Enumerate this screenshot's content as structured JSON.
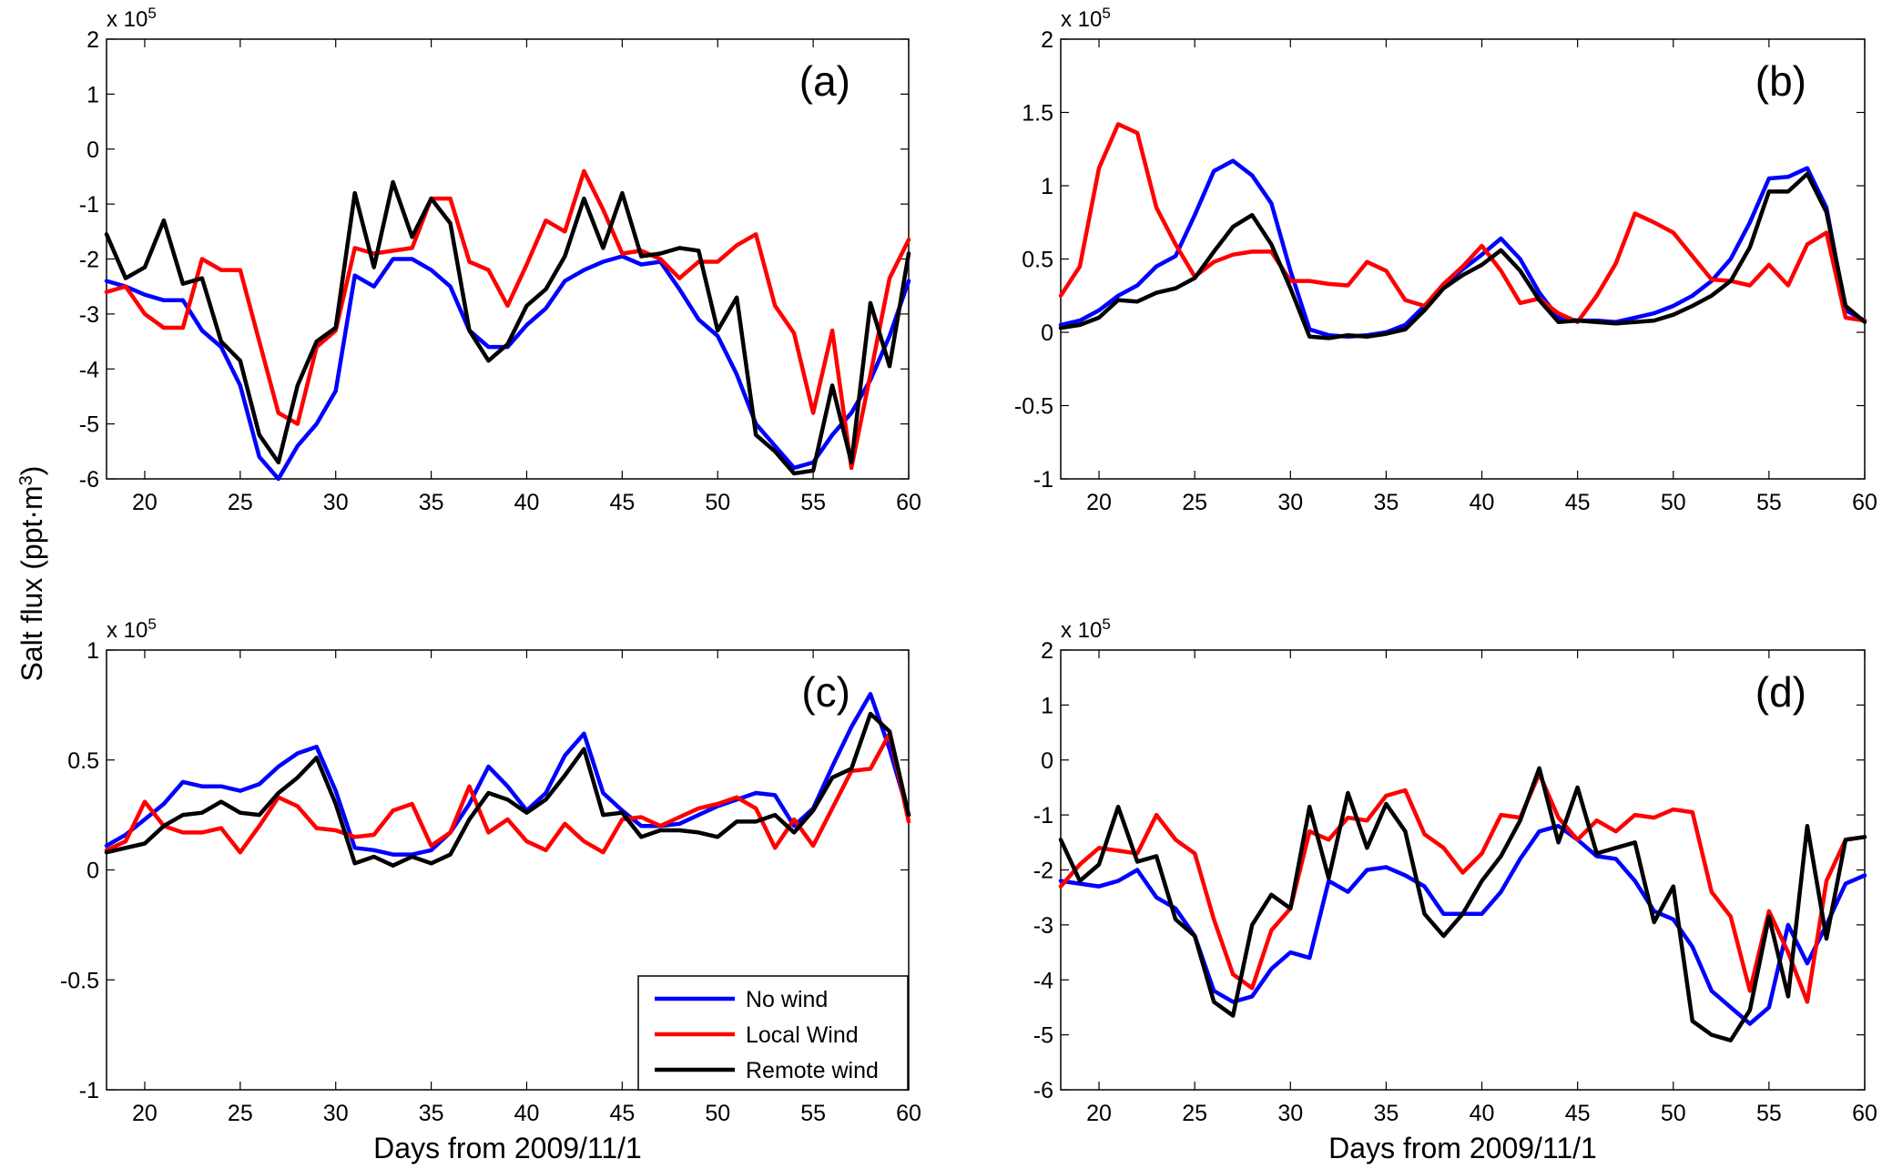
{
  "figure": {
    "ylabel_prefix": "Salt flux (ppt·m",
    "ylabel_sup": "3",
    "ylabel_suffix": ")",
    "multiplier_base": "x 10",
    "multiplier_exp": "5"
  },
  "legend": {
    "entries": [
      {
        "label": "No wind",
        "color": "#0000ff"
      },
      {
        "label": "Local Wind",
        "color": "#ff0000"
      },
      {
        "label": "Remote wind",
        "color": "#000000"
      }
    ]
  },
  "chart_data": [
    {
      "type": "line",
      "panel_label": "(a)",
      "xlabel": "",
      "xlim": [
        18,
        60
      ],
      "ylim": [
        -6,
        2
      ],
      "xticks": [
        20,
        25,
        30,
        35,
        40,
        45,
        50,
        55,
        60
      ],
      "yticks": [
        -6,
        -5,
        -4,
        -3,
        -2,
        -1,
        0,
        1,
        2
      ],
      "ytick_labels": [
        "-6",
        "-5",
        "-4",
        "-3",
        "-2",
        "-1",
        "0",
        "1",
        "2"
      ],
      "x": [
        18,
        19,
        20,
        21,
        22,
        23,
        24,
        25,
        26,
        27,
        28,
        29,
        30,
        31,
        32,
        33,
        34,
        35,
        36,
        37,
        38,
        39,
        40,
        41,
        42,
        43,
        44,
        45,
        46,
        47,
        48,
        49,
        50,
        51,
        52,
        53,
        54,
        55,
        56,
        57,
        58,
        59,
        60
      ],
      "series": [
        {
          "name": "No wind",
          "color": "#0000ff",
          "values": [
            -2.4,
            -2.5,
            -2.65,
            -2.75,
            -2.75,
            -3.3,
            -3.6,
            -4.3,
            -5.6,
            -6.0,
            -5.4,
            -5.0,
            -4.4,
            -2.3,
            -2.5,
            -2.0,
            -2.0,
            -2.2,
            -2.5,
            -3.3,
            -3.6,
            -3.6,
            -3.2,
            -2.9,
            -2.4,
            -2.2,
            -2.05,
            -1.95,
            -2.1,
            -2.05,
            -2.55,
            -3.1,
            -3.4,
            -4.1,
            -5.0,
            -5.4,
            -5.8,
            -5.7,
            -5.2,
            -4.8,
            -4.2,
            -3.4,
            -2.4
          ]
        },
        {
          "name": "Local Wind",
          "color": "#ff0000",
          "values": [
            -2.6,
            -2.5,
            -3.0,
            -3.25,
            -3.25,
            -2.0,
            -2.2,
            -2.2,
            -3.5,
            -4.8,
            -5.0,
            -3.6,
            -3.3,
            -1.8,
            -1.9,
            -1.85,
            -1.8,
            -0.9,
            -0.9,
            -2.05,
            -2.2,
            -2.85,
            -2.1,
            -1.3,
            -1.5,
            -0.4,
            -1.1,
            -1.9,
            -1.85,
            -2.0,
            -2.35,
            -2.05,
            -2.05,
            -1.75,
            -1.55,
            -2.85,
            -3.35,
            -4.8,
            -3.3,
            -5.8,
            -4.1,
            -2.35,
            -1.65
          ]
        },
        {
          "name": "Remote wind",
          "color": "#000000",
          "values": [
            -1.55,
            -2.35,
            -2.15,
            -1.3,
            -2.45,
            -2.35,
            -3.5,
            -3.85,
            -5.2,
            -5.7,
            -4.3,
            -3.5,
            -3.25,
            -0.8,
            -2.15,
            -0.6,
            -1.6,
            -0.9,
            -1.35,
            -3.3,
            -3.85,
            -3.55,
            -2.85,
            -2.55,
            -1.95,
            -0.9,
            -1.8,
            -0.8,
            -1.95,
            -1.9,
            -1.8,
            -1.85,
            -3.3,
            -2.7,
            -5.2,
            -5.5,
            -5.9,
            -5.85,
            -4.3,
            -5.7,
            -2.8,
            -3.95,
            -1.9
          ]
        }
      ]
    },
    {
      "type": "line",
      "panel_label": "(b)",
      "xlabel": "",
      "xlim": [
        18,
        60
      ],
      "ylim": [
        -1,
        2
      ],
      "xticks": [
        20,
        25,
        30,
        35,
        40,
        45,
        50,
        55,
        60
      ],
      "yticks": [
        -1,
        -0.5,
        0,
        0.5,
        1,
        1.5,
        2
      ],
      "ytick_labels": [
        "-1",
        "-0.5",
        "0",
        "0.5",
        "1",
        "1.5",
        "2"
      ],
      "x": [
        18,
        19,
        20,
        21,
        22,
        23,
        24,
        25,
        26,
        27,
        28,
        29,
        30,
        31,
        32,
        33,
        34,
        35,
        36,
        37,
        38,
        39,
        40,
        41,
        42,
        43,
        44,
        45,
        46,
        47,
        48,
        49,
        50,
        51,
        52,
        53,
        54,
        55,
        56,
        57,
        58,
        59,
        60
      ],
      "series": [
        {
          "name": "No wind",
          "color": "#0000ff",
          "values": [
            0.05,
            0.08,
            0.15,
            0.25,
            0.32,
            0.45,
            0.52,
            0.8,
            1.1,
            1.17,
            1.07,
            0.88,
            0.42,
            0.02,
            -0.02,
            -0.03,
            -0.02,
            0.0,
            0.05,
            0.18,
            0.32,
            0.43,
            0.53,
            0.64,
            0.5,
            0.27,
            0.1,
            0.08,
            0.08,
            0.07,
            0.1,
            0.13,
            0.18,
            0.25,
            0.35,
            0.5,
            0.75,
            1.05,
            1.06,
            1.12,
            0.85,
            0.15,
            0.08
          ]
        },
        {
          "name": "Local Wind",
          "color": "#ff0000",
          "values": [
            0.25,
            0.45,
            1.12,
            1.42,
            1.36,
            0.85,
            0.6,
            0.38,
            0.48,
            0.53,
            0.55,
            0.55,
            0.35,
            0.35,
            0.33,
            0.32,
            0.48,
            0.42,
            0.22,
            0.18,
            0.33,
            0.45,
            0.59,
            0.42,
            0.2,
            0.23,
            0.13,
            0.07,
            0.25,
            0.47,
            0.81,
            0.75,
            0.68,
            0.52,
            0.36,
            0.35,
            0.32,
            0.46,
            0.32,
            0.6,
            0.68,
            0.1,
            0.08
          ]
        },
        {
          "name": "Remote wind",
          "color": "#000000",
          "values": [
            0.03,
            0.05,
            0.1,
            0.22,
            0.21,
            0.27,
            0.3,
            0.37,
            0.55,
            0.72,
            0.8,
            0.6,
            0.3,
            -0.03,
            -0.04,
            -0.02,
            -0.03,
            -0.01,
            0.02,
            0.15,
            0.3,
            0.39,
            0.46,
            0.56,
            0.42,
            0.22,
            0.07,
            0.08,
            0.07,
            0.06,
            0.07,
            0.08,
            0.12,
            0.18,
            0.25,
            0.35,
            0.58,
            0.96,
            0.96,
            1.08,
            0.82,
            0.18,
            0.07
          ]
        }
      ]
    },
    {
      "type": "line",
      "panel_label": "(c)",
      "xlabel": "Days from 2009/11/1",
      "xlim": [
        18,
        60
      ],
      "ylim": [
        -1,
        1
      ],
      "xticks": [
        20,
        25,
        30,
        35,
        40,
        45,
        50,
        55,
        60
      ],
      "yticks": [
        -1,
        -0.5,
        0,
        0.5,
        1
      ],
      "ytick_labels": [
        "-1",
        "-0.5",
        "0",
        "0.5",
        "1"
      ],
      "x": [
        18,
        19,
        20,
        21,
        22,
        23,
        24,
        25,
        26,
        27,
        28,
        29,
        30,
        31,
        32,
        33,
        34,
        35,
        36,
        37,
        38,
        39,
        40,
        41,
        42,
        43,
        44,
        45,
        46,
        47,
        48,
        49,
        50,
        51,
        52,
        53,
        54,
        55,
        56,
        57,
        58,
        59,
        60
      ],
      "series": [
        {
          "name": "No wind",
          "color": "#0000ff",
          "values": [
            0.11,
            0.16,
            0.23,
            0.3,
            0.4,
            0.38,
            0.38,
            0.36,
            0.39,
            0.47,
            0.53,
            0.56,
            0.36,
            0.1,
            0.09,
            0.07,
            0.07,
            0.09,
            0.17,
            0.3,
            0.47,
            0.38,
            0.27,
            0.35,
            0.52,
            0.62,
            0.35,
            0.27,
            0.2,
            0.2,
            0.21,
            0.25,
            0.29,
            0.32,
            0.35,
            0.34,
            0.2,
            0.28,
            0.47,
            0.65,
            0.8,
            0.55,
            0.25
          ]
        },
        {
          "name": "Local Wind",
          "color": "#ff0000",
          "values": [
            0.09,
            0.13,
            0.31,
            0.2,
            0.17,
            0.17,
            0.19,
            0.08,
            0.2,
            0.33,
            0.29,
            0.19,
            0.18,
            0.15,
            0.16,
            0.27,
            0.3,
            0.11,
            0.17,
            0.38,
            0.17,
            0.23,
            0.13,
            0.09,
            0.21,
            0.13,
            0.08,
            0.23,
            0.24,
            0.2,
            0.24,
            0.28,
            0.3,
            0.33,
            0.28,
            0.1,
            0.23,
            0.11,
            0.28,
            0.45,
            0.46,
            0.62,
            0.22
          ]
        },
        {
          "name": "Remote wind",
          "color": "#000000",
          "values": [
            0.08,
            0.1,
            0.12,
            0.2,
            0.25,
            0.26,
            0.31,
            0.26,
            0.25,
            0.35,
            0.42,
            0.51,
            0.3,
            0.03,
            0.06,
            0.02,
            0.06,
            0.03,
            0.07,
            0.23,
            0.35,
            0.32,
            0.26,
            0.32,
            0.43,
            0.55,
            0.25,
            0.26,
            0.15,
            0.18,
            0.18,
            0.17,
            0.15,
            0.22,
            0.22,
            0.25,
            0.17,
            0.27,
            0.42,
            0.46,
            0.71,
            0.63,
            0.25
          ]
        }
      ]
    },
    {
      "type": "line",
      "panel_label": "(d)",
      "xlabel": "Days from 2009/11/1",
      "xlim": [
        18,
        60
      ],
      "ylim": [
        -6,
        2
      ],
      "xticks": [
        20,
        25,
        30,
        35,
        40,
        45,
        50,
        55,
        60
      ],
      "yticks": [
        -6,
        -5,
        -4,
        -3,
        -2,
        -1,
        0,
        1,
        2
      ],
      "ytick_labels": [
        "-6",
        "-5",
        "-4",
        "-3",
        "-2",
        "-1",
        "0",
        "1",
        "2"
      ],
      "x": [
        18,
        19,
        20,
        21,
        22,
        23,
        24,
        25,
        26,
        27,
        28,
        29,
        30,
        31,
        32,
        33,
        34,
        35,
        36,
        37,
        38,
        39,
        40,
        41,
        42,
        43,
        44,
        45,
        46,
        47,
        48,
        49,
        50,
        51,
        52,
        53,
        54,
        55,
        56,
        57,
        58,
        59,
        60
      ],
      "series": [
        {
          "name": "No wind",
          "color": "#0000ff",
          "values": [
            -2.2,
            -2.25,
            -2.3,
            -2.2,
            -2.0,
            -2.5,
            -2.7,
            -3.2,
            -4.2,
            -4.4,
            -4.3,
            -3.8,
            -3.5,
            -3.6,
            -2.2,
            -2.4,
            -2.0,
            -1.95,
            -2.1,
            -2.3,
            -2.8,
            -2.8,
            -2.8,
            -2.4,
            -1.8,
            -1.3,
            -1.2,
            -1.45,
            -1.75,
            -1.8,
            -2.2,
            -2.75,
            -2.9,
            -3.4,
            -4.2,
            -4.5,
            -4.8,
            -4.5,
            -3.0,
            -3.7,
            -3.0,
            -2.25,
            -2.1
          ]
        },
        {
          "name": "Local Wind",
          "color": "#ff0000",
          "values": [
            -2.3,
            -1.9,
            -1.6,
            -1.65,
            -1.7,
            -1.0,
            -1.45,
            -1.7,
            -2.9,
            -3.9,
            -4.15,
            -3.1,
            -2.7,
            -1.3,
            -1.45,
            -1.05,
            -1.1,
            -0.65,
            -0.55,
            -1.35,
            -1.6,
            -2.05,
            -1.7,
            -1.0,
            -1.05,
            -0.25,
            -1.05,
            -1.45,
            -1.1,
            -1.3,
            -1.0,
            -1.05,
            -0.9,
            -0.95,
            -2.4,
            -2.85,
            -4.2,
            -2.75,
            -3.5,
            -4.4,
            -2.2,
            -1.45,
            -1.4
          ]
        },
        {
          "name": "Remote wind",
          "color": "#000000",
          "values": [
            -1.45,
            -2.2,
            -1.9,
            -0.85,
            -1.85,
            -1.75,
            -2.9,
            -3.2,
            -4.4,
            -4.65,
            -3.0,
            -2.45,
            -2.7,
            -0.85,
            -2.15,
            -0.6,
            -1.6,
            -0.8,
            -1.3,
            -2.8,
            -3.2,
            -2.8,
            -2.2,
            -1.75,
            -1.1,
            -0.15,
            -1.5,
            -0.5,
            -1.7,
            -1.6,
            -1.5,
            -2.95,
            -2.3,
            -4.75,
            -5.0,
            -5.1,
            -4.55,
            -2.85,
            -4.3,
            -1.2,
            -3.25,
            -1.45,
            -1.4
          ]
        }
      ]
    }
  ]
}
